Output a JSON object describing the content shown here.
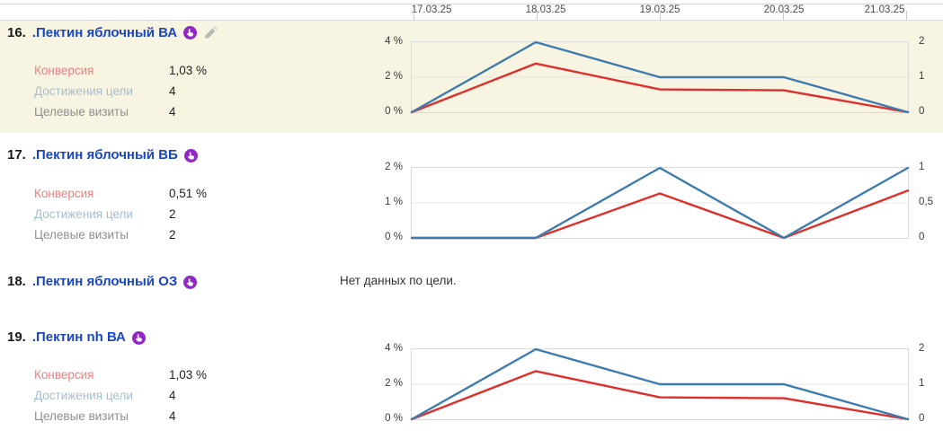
{
  "dates": [
    "17.03.25",
    "18.03.25",
    "19.03.25",
    "20.03.25",
    "21.03.25"
  ],
  "stats_labels": {
    "conversion": "Конверсия",
    "goal_reaches": "Достижения цели",
    "goal_visits": "Целевые визиты"
  },
  "rows": [
    {
      "num": "16.",
      "title": ".Пектин яблочный ВА",
      "stats": {
        "conversion": "1,03 %",
        "goal_reaches": "4",
        "goal_visits": "4"
      }
    },
    {
      "num": "17.",
      "title": ".Пектин яблочный ВБ",
      "stats": {
        "conversion": "0,51 %",
        "goal_reaches": "2",
        "goal_visits": "2"
      }
    },
    {
      "num": "18.",
      "title": ".Пектин яблочный ОЗ",
      "message": "Нет данных по цели."
    },
    {
      "num": "19.",
      "title": ".Пектин nh ВА",
      "stats": {
        "conversion": "1,03 %",
        "goal_reaches": "4",
        "goal_visits": "4"
      }
    }
  ],
  "icons": {
    "goal_type": "tap-hand-icon",
    "edit": "pencil-icon"
  },
  "colors": {
    "link_blue": "#1b46c2",
    "line_blue": "#3e7cb0",
    "line_red": "#dd2f2b",
    "row_highlight": "#f8f4e2",
    "icon_purple": "#9127c4",
    "grid": "#e4e4e4",
    "border": "#d9d9d9"
  },
  "chart_data": [
    {
      "type": "line",
      "title": ".Пектин яблочный ВА — динамика",
      "x": [
        "17.03.25",
        "18.03.25",
        "19.03.25",
        "20.03.25",
        "21.03.25"
      ],
      "series": [
        {
          "name": "Достижения цели",
          "color": "#3e7cb0",
          "axis": "right",
          "max": 2,
          "values": [
            0,
            2,
            1,
            1,
            0
          ]
        },
        {
          "name": "Конверсия",
          "color": "#dd2f2b",
          "axis": "left",
          "max": 4,
          "values": [
            0,
            2.78,
            1.3,
            1.25,
            0
          ]
        }
      ],
      "left_ticks": [
        "4 %",
        "2 %",
        "0 %"
      ],
      "right_ticks": [
        "2",
        "1",
        "0"
      ],
      "left_range": [
        0,
        4
      ],
      "right_range": [
        0,
        2
      ],
      "grid": true,
      "legend": "none"
    },
    {
      "type": "line",
      "title": ".Пектин яблочный ВБ — динамика",
      "x": [
        "17.03.25",
        "18.03.25",
        "19.03.25",
        "20.03.25",
        "21.03.25"
      ],
      "series": [
        {
          "name": "Достижения цели",
          "color": "#3e7cb0",
          "axis": "right",
          "max": 1,
          "values": [
            0,
            0,
            1,
            0,
            1
          ]
        },
        {
          "name": "Конверсия",
          "color": "#dd2f2b",
          "axis": "left",
          "max": 2,
          "values": [
            0,
            0,
            1.27,
            0,
            1.35
          ]
        }
      ],
      "left_ticks": [
        "2 %",
        "1 %",
        "0 %"
      ],
      "right_ticks": [
        "1",
        "0,5",
        "0"
      ],
      "left_range": [
        0,
        2
      ],
      "right_range": [
        0,
        1
      ],
      "grid": true,
      "legend": "none"
    },
    {
      "type": "line",
      "title": ".Пектин nh ВА — динамика",
      "x": [
        "17.03.25",
        "18.03.25",
        "19.03.25",
        "20.03.25",
        "21.03.25"
      ],
      "series": [
        {
          "name": "Достижения цели",
          "color": "#3e7cb0",
          "axis": "right",
          "max": 2,
          "values": [
            0,
            2,
            1,
            1,
            0
          ]
        },
        {
          "name": "Конверсия",
          "color": "#dd2f2b",
          "axis": "left",
          "max": 4,
          "values": [
            0,
            2.75,
            1.25,
            1.2,
            0
          ]
        }
      ],
      "left_ticks": [
        "4 %",
        "2 %",
        "0 %"
      ],
      "right_ticks": [
        "2",
        "1",
        "0"
      ],
      "left_range": [
        0,
        4
      ],
      "right_range": [
        0,
        2
      ],
      "grid": true,
      "legend": "none"
    }
  ]
}
